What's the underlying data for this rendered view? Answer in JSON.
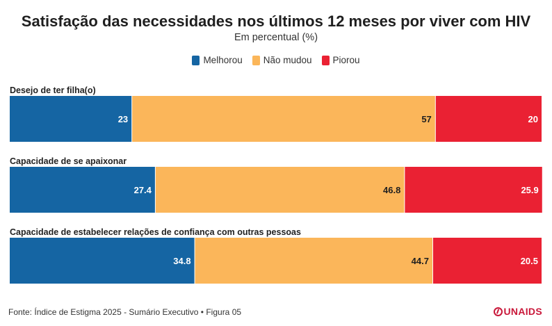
{
  "chart_data": {
    "type": "bar",
    "stacked": true,
    "orientation": "horizontal",
    "title": "Satisfação das necessidades nos últimos 12 meses por viver com HIV",
    "subtitle": "Em percentual (%)",
    "categories": [
      "Desejo de ter filha(o)",
      "Capacidade de se apaixonar",
      "Capacidade de estabelecer relações de confiança com outras pessoas"
    ],
    "series": [
      {
        "name": "Melhorou",
        "color": "#1565a3",
        "values": [
          23,
          27.4,
          34.8
        ],
        "labels": [
          "23",
          "27.4",
          "34.8"
        ]
      },
      {
        "name": "Não mudou",
        "color": "#fbb65a",
        "values": [
          57,
          46.8,
          44.7
        ],
        "labels": [
          "57",
          "46.8",
          "44.7"
        ]
      },
      {
        "name": "Piorou",
        "color": "#ea2133",
        "values": [
          20,
          25.9,
          20.5
        ],
        "labels": [
          "20",
          "25.9",
          "20.5"
        ]
      }
    ],
    "xlim": [
      0,
      100
    ],
    "legend": "top-center",
    "grid": false
  },
  "footer": "Fonte: Índice de Estigma 2025 - Sumário Executivo • Figura 05",
  "logo": "UNAIDS"
}
